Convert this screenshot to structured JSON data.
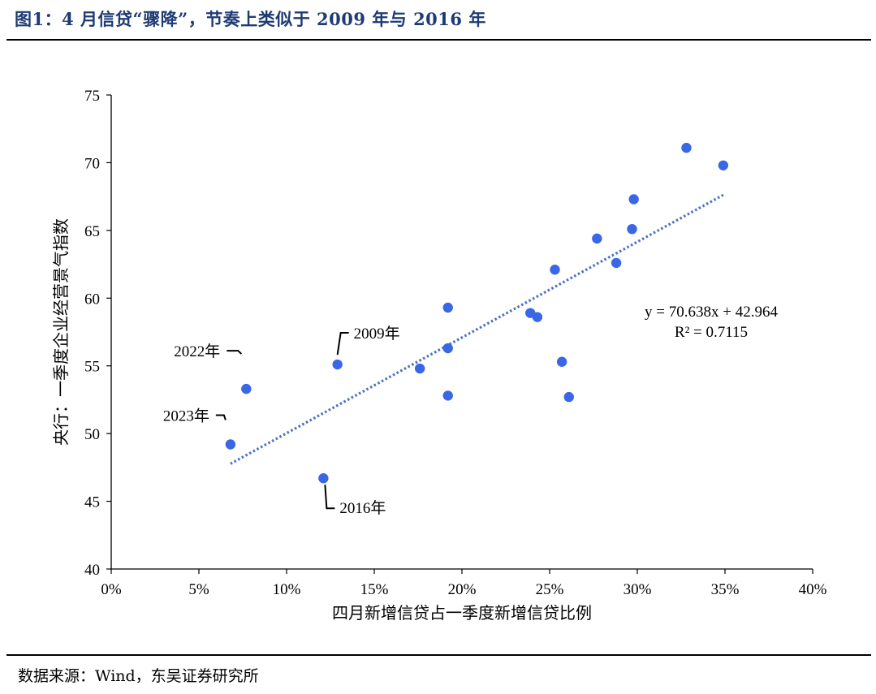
{
  "header": {
    "title": "图1：4 月信贷“骤降”，节奏上类似于 2009 年与 2016 年"
  },
  "footer": {
    "source": "数据来源：Wind，东吴证券研究所"
  },
  "colors": {
    "point": "#3a67e6",
    "trendline": "#4a72c4",
    "title": "#1f3b73"
  },
  "chart_data": {
    "type": "scatter",
    "xlabel": "四月新增信贷占一季度新增信贷比例",
    "ylabel": "央行：一季度企业经营景气指数",
    "xlim": [
      0,
      0.4
    ],
    "ylim": [
      40,
      75
    ],
    "xticks": [
      0,
      0.05,
      0.1,
      0.15,
      0.2,
      0.25,
      0.3,
      0.35,
      0.4
    ],
    "xtick_labels": [
      "0%",
      "5%",
      "10%",
      "15%",
      "20%",
      "25%",
      "30%",
      "35%",
      "40%"
    ],
    "yticks": [
      40,
      45,
      50,
      55,
      60,
      65,
      70,
      75
    ],
    "ytick_labels": [
      "40",
      "45",
      "50",
      "55",
      "60",
      "65",
      "70",
      "75"
    ],
    "grid": false,
    "points": [
      {
        "x": 0.068,
        "y": 49.2,
        "label": "2023年"
      },
      {
        "x": 0.077,
        "y": 53.3,
        "label": "2022年"
      },
      {
        "x": 0.121,
        "y": 46.7,
        "label": "2016年"
      },
      {
        "x": 0.129,
        "y": 55.1,
        "label": "2009年"
      },
      {
        "x": 0.176,
        "y": 54.8
      },
      {
        "x": 0.192,
        "y": 59.3
      },
      {
        "x": 0.192,
        "y": 56.3
      },
      {
        "x": 0.192,
        "y": 52.8
      },
      {
        "x": 0.239,
        "y": 58.9
      },
      {
        "x": 0.243,
        "y": 58.6
      },
      {
        "x": 0.253,
        "y": 62.1
      },
      {
        "x": 0.257,
        "y": 55.3
      },
      {
        "x": 0.261,
        "y": 52.7
      },
      {
        "x": 0.277,
        "y": 64.4
      },
      {
        "x": 0.288,
        "y": 62.6
      },
      {
        "x": 0.297,
        "y": 65.1
      },
      {
        "x": 0.298,
        "y": 67.3
      },
      {
        "x": 0.328,
        "y": 71.1
      },
      {
        "x": 0.349,
        "y": 69.8
      }
    ],
    "trendline": {
      "slope": 70.638,
      "intercept": 42.964,
      "x_range": [
        0.068,
        0.349
      ],
      "equation": "y = 70.638x + 42.964",
      "r_squared": "R² = 0.7115"
    }
  }
}
